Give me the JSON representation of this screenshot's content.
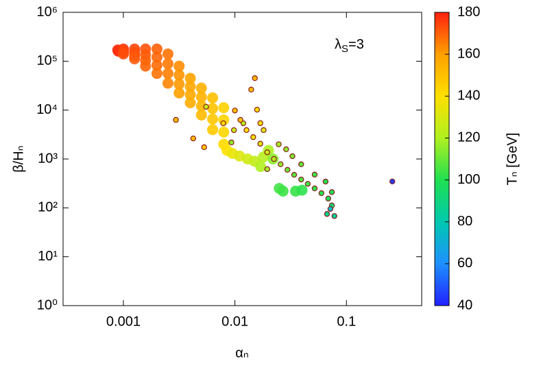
{
  "chart_data": {
    "type": "scatter",
    "x_label": "αₙ",
    "y_label": "β/Hₙ",
    "annotation": [
      "λ",
      "S",
      "=3"
    ],
    "xscale": "log",
    "yscale": "log",
    "xlim": [
      0.000288,
      0.473
    ],
    "ylim": [
      1,
      1000000
    ],
    "xticks": [
      0.001,
      0.01,
      0.1
    ],
    "yticks": [
      {
        "value": 1,
        "label": "10⁰"
      },
      {
        "value": 10,
        "label": "10¹"
      },
      {
        "value": 100,
        "label": "10²"
      },
      {
        "value": 1000,
        "label": "10³"
      },
      {
        "value": 10000,
        "label": "10⁴"
      },
      {
        "value": 100000,
        "label": "10⁵"
      },
      {
        "value": 1000000,
        "label": "10⁶"
      }
    ],
    "colorbar": {
      "label": "Tₙ [GeV]",
      "lim": [
        40,
        180
      ],
      "ticks": [
        40,
        60,
        80,
        100,
        120,
        140,
        160,
        180
      ],
      "colormap": [
        "#2020ff",
        "#1e90ff",
        "#00c8b0",
        "#20e050",
        "#b0f020",
        "#ffe000",
        "#ffa000",
        "#ff2010"
      ]
    },
    "series": [
      {
        "x": [
          0.00089,
          0.0009,
          0.001,
          0.001,
          0.001,
          0.001,
          0.00126,
          0.00126,
          0.00126,
          0.00126,
          0.00158,
          0.00158,
          0.00158,
          0.00158,
          0.002,
          0.002,
          0.002,
          0.002,
          0.00251,
          0.00251,
          0.00251,
          0.00251,
          0.00316,
          0.00316,
          0.00316,
          0.00316,
          0.00398,
          0.00398,
          0.00398,
          0.00398,
          0.00501,
          0.00501,
          0.00501,
          0.00501,
          0.00631,
          0.00631,
          0.00631,
          0.00631,
          0.00794,
          0.00794,
          0.00794,
          0.00794,
          0.0085,
          0.0095,
          0.011,
          0.013,
          0.015,
          0.017,
          0.018,
          0.02,
          0.022,
          0.025,
          0.027,
          0.035,
          0.04
        ],
        "y": [
          170000,
          160000,
          178000,
          165000,
          152000,
          141000,
          178000,
          152000,
          131000,
          112000,
          178000,
          136000,
          104000,
          79400,
          178000,
          121000,
          82600,
          56200,
          141000,
          89100,
          56200,
          35500,
          79400,
          52100,
          34100,
          22400,
          44700,
          30400,
          20700,
          14100,
          28200,
          18500,
          12100,
          7940,
          17800,
          10800,
          6560,
          3980,
          11200,
          6310,
          3550,
          2000,
          1500,
          1300,
          1150,
          1000,
          900,
          700,
          1100,
          1500,
          1000,
          250,
          220,
          220,
          230
        ],
        "t": [
          178,
          178,
          176,
          175,
          174,
          173,
          174,
          173,
          172,
          171,
          172,
          171,
          170,
          169,
          170,
          169,
          168,
          167,
          167,
          166,
          165,
          164,
          163,
          162,
          161,
          160,
          159,
          158,
          157,
          156,
          155,
          154,
          153,
          152,
          150,
          149,
          148,
          147,
          145,
          144,
          143,
          142,
          140,
          135,
          132,
          128,
          125,
          120,
          122,
          120,
          115,
          105,
          104,
          103,
          102
        ]
      },
      {
        "edgecolor": "#8b1a1a",
        "x": [
          0.00296,
          0.00423,
          0.0053,
          0.00552,
          0.0151,
          0.014,
          0.00787,
          0.0119,
          0.0098,
          0.0093,
          0.0158,
          0.01,
          0.0112,
          0.0127,
          0.0146,
          0.0169,
          0.0195,
          0.0224,
          0.0257,
          0.0296,
          0.034,
          0.0393,
          0.045,
          0.0519,
          0.0597,
          0.0687,
          0.074,
          0.078,
          0.0718,
          0.067,
          0.0247,
          0.0288,
          0.0328,
          0.0181,
          0.0169,
          0.0393,
          0.0519,
          0.065,
          0.074,
          0.0195,
          0.258
        ],
        "y": [
          6300,
          2630,
          1740,
          11700,
          45000,
          26300,
          5370,
          5370,
          3890,
          2180,
          10200,
          9800,
          6300,
          3900,
          2800,
          2050,
          1370,
          1000,
          780,
          600,
          475,
          380,
          310,
          250,
          200,
          155,
          112,
          68,
          95,
          75,
          2000,
          1580,
          1140,
          3900,
          5400,
          780,
          480,
          345,
          210,
          620,
          347
        ],
        "t": [
          150,
          150,
          148,
          125,
          152,
          150,
          140,
          120,
          125,
          115,
          138,
          150,
          148,
          140,
          135,
          130,
          125,
          120,
          115,
          110,
          108,
          106,
          104,
          102,
          100,
          97,
          92,
          85,
          75,
          88,
          118,
          115,
          112,
          130,
          135,
          108,
          104,
          100,
          98,
          118,
          45
        ]
      }
    ]
  }
}
